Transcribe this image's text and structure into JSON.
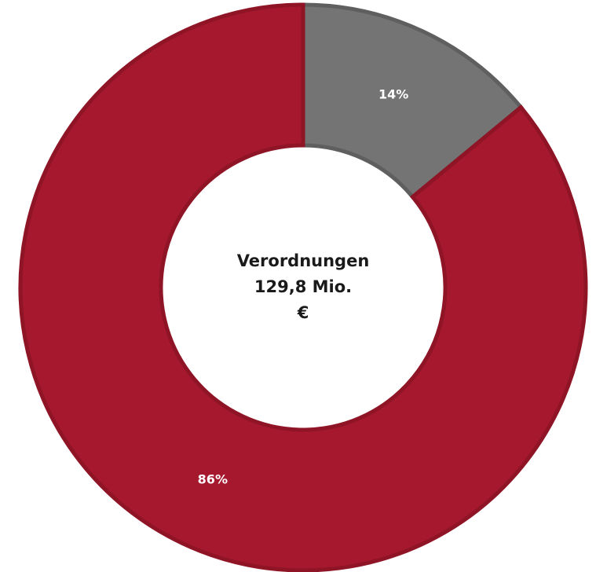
{
  "chart_data": {
    "type": "donut",
    "values": [
      14,
      86
    ],
    "value_labels": [
      "14%",
      "86%"
    ],
    "colors": [
      "#737473",
      "#a6182e"
    ],
    "center_text": [
      "Verordnungen",
      "129,8 Mio.",
      "€"
    ]
  }
}
